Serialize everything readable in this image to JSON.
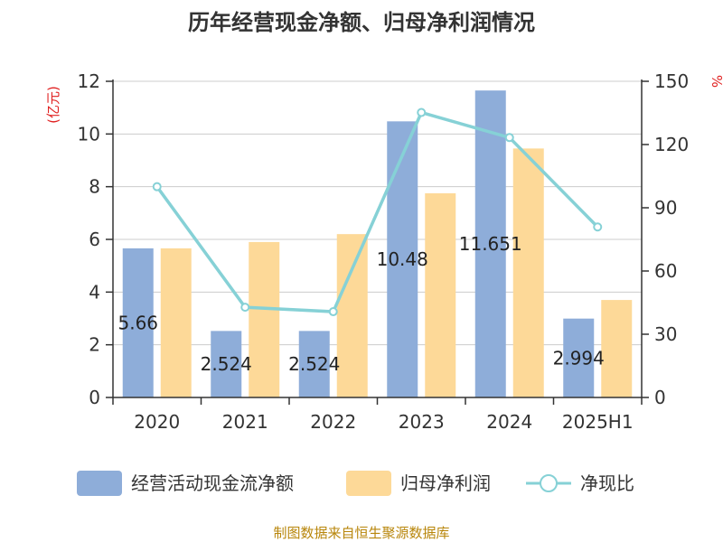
{
  "title": "历年经营现金净额、归母净利润情况",
  "source": "制图数据来自恒生聚源数据库",
  "colors": {
    "cash_flow": "#8eadd9",
    "net_profit": "#fdd998",
    "ratio_line": "#86d1d6",
    "unit_text": "#e02020",
    "source_text": "#b8860b",
    "grid": "#cccccc",
    "axis": "#333333"
  },
  "chart_data": {
    "type": "bar",
    "categories": [
      "2020",
      "2021",
      "2022",
      "2023",
      "2024",
      "2025H1"
    ],
    "series": [
      {
        "name": "经营活动现金流净额",
        "type": "bar",
        "axis": "left",
        "values": [
          5.66,
          2.524,
          2.524,
          10.48,
          11.651,
          2.994
        ],
        "labels": [
          "5.66",
          "2.524",
          "2.524",
          "10.48",
          "11.651",
          "2.994"
        ]
      },
      {
        "name": "归母净利润",
        "type": "bar",
        "axis": "left",
        "values": [
          5.66,
          5.9,
          6.2,
          7.75,
          9.45,
          3.7
        ]
      },
      {
        "name": "净现比",
        "type": "line",
        "axis": "right",
        "values": [
          100,
          42.8,
          40.7,
          135.2,
          123.3,
          80.9
        ]
      }
    ],
    "y_left": {
      "unit": "(亿元)",
      "min": 0,
      "max": 12,
      "ticks": [
        "0",
        "2",
        "4",
        "6",
        "8",
        "10",
        "12"
      ]
    },
    "y_right": {
      "unit": "%",
      "min": 0,
      "max": 150,
      "ticks": [
        "0",
        "30",
        "60",
        "90",
        "120",
        "150"
      ]
    },
    "grid": true,
    "legend_position": "bottom"
  }
}
